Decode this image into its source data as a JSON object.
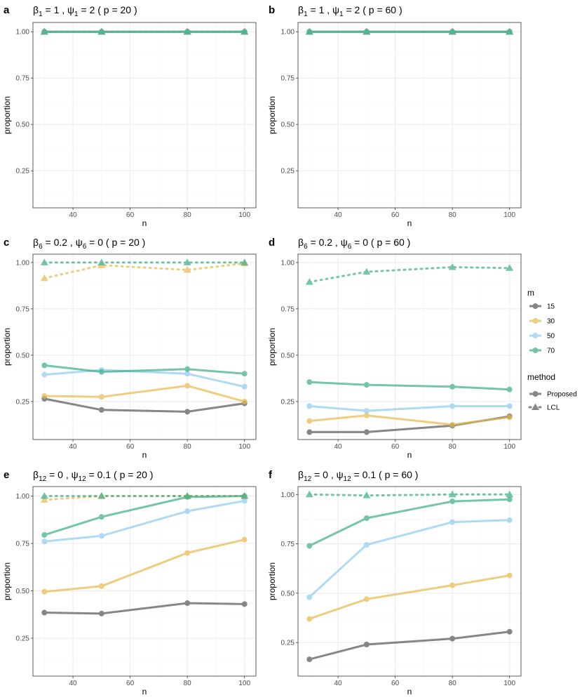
{
  "colors": {
    "m15": "#555555",
    "m30": "#E9B949",
    "m50": "#8CCBEE",
    "m70": "#3AAD87",
    "grid_major": "#ebebeb",
    "grid_minor": "#f5f5f5",
    "panel_border": "#333333"
  },
  "axes": {
    "xlabel": "n",
    "ylabel": "proportion",
    "xlim": [
      26,
      104
    ],
    "xticks": [
      40,
      60,
      80,
      100
    ],
    "yticks_ab": [
      0.25,
      0.5,
      0.75,
      1.0
    ],
    "yticks_other": [
      0.25,
      0.5,
      0.75,
      1.0
    ],
    "ytick_labels": [
      "0.25",
      "0.50",
      "0.75",
      "1.00"
    ],
    "xtick_labels": [
      "40",
      "60",
      "80",
      "100"
    ]
  },
  "legend": {
    "m_title": "m",
    "m_items": [
      {
        "label": "15",
        "key": "m15"
      },
      {
        "label": "30",
        "key": "m30"
      },
      {
        "label": "50",
        "key": "m50"
      },
      {
        "label": "70",
        "key": "m70"
      }
    ],
    "method_title": "method",
    "method_items": [
      {
        "label": "Proposed",
        "shape": "circle"
      },
      {
        "label": "LCL",
        "shape": "triangle"
      }
    ]
  },
  "chart_data": [
    {
      "panel": "a",
      "type": "line",
      "title": {
        "beta_sub": "1",
        "beta_val": "1",
        "psi_sub": "1",
        "psi_val": "2",
        "p": "20"
      },
      "x": [
        30,
        50,
        80,
        100
      ],
      "ylim": [
        0.05,
        1.05
      ],
      "series": [
        {
          "m": "15",
          "method": "Proposed",
          "values": [
            1,
            1,
            1,
            1
          ]
        },
        {
          "m": "30",
          "method": "Proposed",
          "values": [
            1,
            1,
            1,
            1
          ]
        },
        {
          "m": "50",
          "method": "Proposed",
          "values": [
            1,
            1,
            1,
            1
          ]
        },
        {
          "m": "70",
          "method": "Proposed",
          "values": [
            1,
            1,
            1,
            1
          ]
        },
        {
          "m": "15",
          "method": "LCL",
          "values": [
            1,
            1,
            1,
            1
          ]
        },
        {
          "m": "30",
          "method": "LCL",
          "values": [
            1,
            1,
            1,
            1
          ]
        },
        {
          "m": "50",
          "method": "LCL",
          "values": [
            1,
            1,
            1,
            1
          ]
        },
        {
          "m": "70",
          "method": "LCL",
          "values": [
            1,
            1,
            1,
            1
          ]
        }
      ]
    },
    {
      "panel": "b",
      "type": "line",
      "title": {
        "beta_sub": "1",
        "beta_val": "1",
        "psi_sub": "1",
        "psi_val": "2",
        "p": "60"
      },
      "x": [
        30,
        50,
        80,
        100
      ],
      "ylim": [
        0.05,
        1.05
      ],
      "series": [
        {
          "m": "15",
          "method": "Proposed",
          "values": [
            1,
            1,
            1,
            1
          ]
        },
        {
          "m": "30",
          "method": "Proposed",
          "values": [
            1,
            1,
            1,
            1
          ]
        },
        {
          "m": "50",
          "method": "Proposed",
          "values": [
            1,
            1,
            1,
            1
          ]
        },
        {
          "m": "70",
          "method": "Proposed",
          "values": [
            1,
            1,
            1,
            1
          ]
        },
        {
          "m": "15",
          "method": "LCL",
          "values": [
            1,
            1,
            1,
            1
          ]
        },
        {
          "m": "30",
          "method": "LCL",
          "values": [
            1,
            1,
            1,
            1
          ]
        },
        {
          "m": "50",
          "method": "LCL",
          "values": [
            1,
            1,
            1,
            1
          ]
        },
        {
          "m": "70",
          "method": "LCL",
          "values": [
            1,
            1,
            1,
            1
          ]
        }
      ]
    },
    {
      "panel": "c",
      "type": "line",
      "title": {
        "beta_sub": "6",
        "beta_val": "0.2",
        "psi_sub": "6",
        "psi_val": "0",
        "p": "20"
      },
      "x": [
        30,
        50,
        80,
        100
      ],
      "ylim": [
        0.045,
        1.045
      ],
      "series": [
        {
          "m": "15",
          "method": "Proposed",
          "values": [
            0.265,
            0.205,
            0.195,
            0.24
          ]
        },
        {
          "m": "30",
          "method": "Proposed",
          "values": [
            0.28,
            0.275,
            0.335,
            0.25
          ]
        },
        {
          "m": "50",
          "method": "Proposed",
          "values": [
            0.395,
            0.42,
            0.4,
            0.33
          ]
        },
        {
          "m": "70",
          "method": "Proposed",
          "values": [
            0.445,
            0.41,
            0.425,
            0.4
          ]
        },
        {
          "m": "30",
          "method": "LCL",
          "values": [
            0.915,
            0.985,
            0.96,
            0.995
          ]
        },
        {
          "m": "70",
          "method": "LCL",
          "values": [
            1.0,
            1.0,
            1.0,
            1.0
          ]
        }
      ]
    },
    {
      "panel": "d",
      "type": "line",
      "title": {
        "beta_sub": "6",
        "beta_val": "0.2",
        "psi_sub": "6",
        "psi_val": "0",
        "p": "60"
      },
      "x": [
        30,
        50,
        80,
        100
      ],
      "ylim": [
        0.045,
        1.045
      ],
      "series": [
        {
          "m": "15",
          "method": "Proposed",
          "values": [
            0.085,
            0.085,
            0.12,
            0.17
          ]
        },
        {
          "m": "30",
          "method": "Proposed",
          "values": [
            0.145,
            0.175,
            0.125,
            0.165
          ]
        },
        {
          "m": "50",
          "method": "Proposed",
          "values": [
            0.225,
            0.2,
            0.225,
            0.225
          ]
        },
        {
          "m": "70",
          "method": "Proposed",
          "values": [
            0.355,
            0.34,
            0.33,
            0.315
          ]
        },
        {
          "m": "70",
          "method": "LCL",
          "values": [
            0.895,
            0.95,
            0.975,
            0.97
          ]
        }
      ]
    },
    {
      "panel": "e",
      "type": "line",
      "title": {
        "beta_sub": "12",
        "beta_val": "0",
        "psi_sub": "12",
        "psi_val": "0.1",
        "p": "20"
      },
      "x": [
        30,
        50,
        80,
        100
      ],
      "ylim": [
        0.05,
        1.05
      ],
      "series": [
        {
          "m": "15",
          "method": "Proposed",
          "values": [
            0.385,
            0.38,
            0.435,
            0.43
          ]
        },
        {
          "m": "30",
          "method": "Proposed",
          "values": [
            0.495,
            0.525,
            0.7,
            0.77
          ]
        },
        {
          "m": "50",
          "method": "Proposed",
          "values": [
            0.76,
            0.79,
            0.92,
            0.975
          ]
        },
        {
          "m": "70",
          "method": "Proposed",
          "values": [
            0.795,
            0.89,
            0.995,
            1.0
          ]
        },
        {
          "m": "30",
          "method": "LCL",
          "values": [
            0.98,
            1.0,
            1.0,
            1.0
          ]
        },
        {
          "m": "70",
          "method": "LCL",
          "values": [
            1.0,
            1.0,
            1.0,
            1.0
          ]
        }
      ]
    },
    {
      "panel": "f",
      "type": "line",
      "title": {
        "beta_sub": "12",
        "beta_val": "0",
        "psi_sub": "12",
        "psi_val": "0.1",
        "p": "60"
      },
      "x": [
        30,
        50,
        80,
        100
      ],
      "ylim": [
        0.08,
        1.04
      ],
      "series": [
        {
          "m": "15",
          "method": "Proposed",
          "values": [
            0.165,
            0.24,
            0.27,
            0.305
          ]
        },
        {
          "m": "30",
          "method": "Proposed",
          "values": [
            0.37,
            0.47,
            0.54,
            0.59
          ]
        },
        {
          "m": "50",
          "method": "Proposed",
          "values": [
            0.48,
            0.745,
            0.86,
            0.87
          ]
        },
        {
          "m": "70",
          "method": "Proposed",
          "values": [
            0.74,
            0.88,
            0.965,
            0.975
          ]
        },
        {
          "m": "70",
          "method": "LCL",
          "values": [
            1.0,
            0.995,
            1.0,
            1.0
          ]
        }
      ]
    }
  ]
}
